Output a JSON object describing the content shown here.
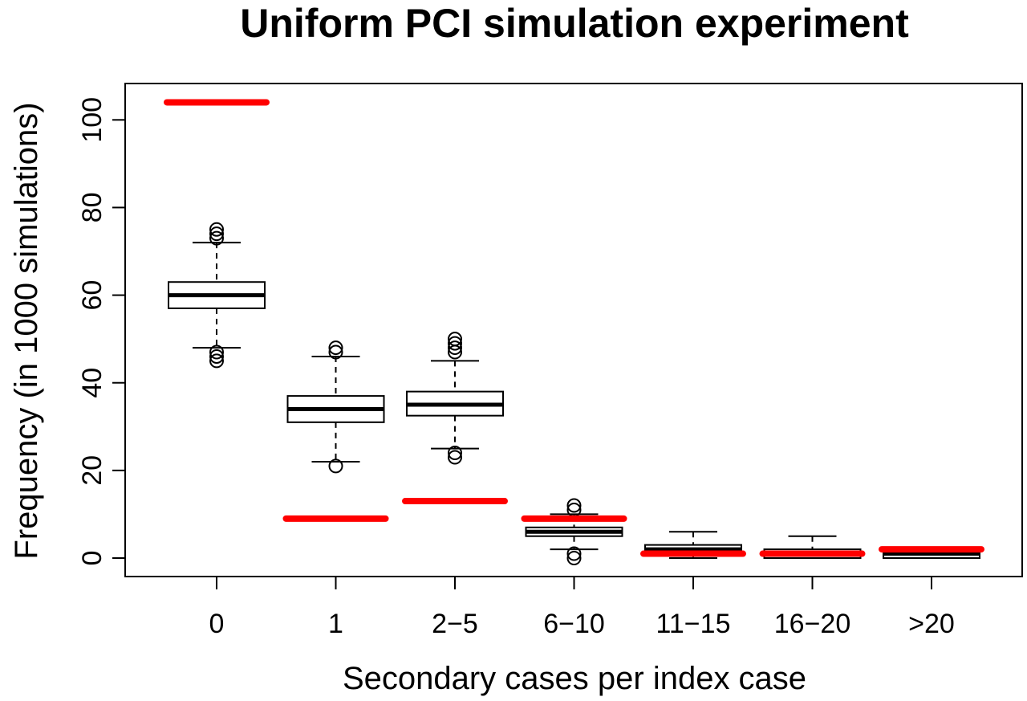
{
  "chart_data": {
    "type": "boxplot",
    "title": "Uniform PCI simulation experiment",
    "xlabel": "Secondary cases per index case",
    "ylabel": "Frequency (in 1000 simulations)",
    "ylim": [
      -4,
      107
    ],
    "yticks": [
      0,
      20,
      40,
      60,
      80,
      100
    ],
    "grid": false,
    "categories": [
      "0",
      "1",
      "2−5",
      "6−10",
      "11−15",
      "16−20",
      ">20"
    ],
    "boxes": [
      {
        "category": "0",
        "whisker_low": 48,
        "q1": 57,
        "median": 60,
        "q3": 63,
        "whisker_high": 72,
        "outliers": [
          45,
          46,
          47,
          73,
          74,
          75
        ]
      },
      {
        "category": "1",
        "whisker_low": 22,
        "q1": 31,
        "median": 34,
        "q3": 37,
        "whisker_high": 46,
        "outliers": [
          21,
          47,
          48
        ]
      },
      {
        "category": "2−5",
        "whisker_low": 25,
        "q1": 32.5,
        "median": 35,
        "q3": 38,
        "whisker_high": 45,
        "outliers": [
          23,
          24,
          47,
          48,
          49,
          50
        ]
      },
      {
        "category": "6−10",
        "whisker_low": 2,
        "q1": 5,
        "median": 6,
        "q3": 7,
        "whisker_high": 10,
        "outliers": [
          0,
          1,
          11,
          12
        ]
      },
      {
        "category": "11−15",
        "whisker_low": 0,
        "q1": 1,
        "median": 2,
        "q3": 3,
        "whisker_high": 6,
        "outliers": []
      },
      {
        "category": "16−20",
        "whisker_low": 0,
        "q1": 0,
        "median": 1,
        "q3": 2,
        "whisker_high": 5,
        "outliers": []
      },
      {
        "category": ">20",
        "whisker_low": 0,
        "q1": 0,
        "median": 1,
        "q3": 2,
        "whisker_high": 2,
        "outliers": []
      }
    ],
    "observed": {
      "color": "#ff0000",
      "values": [
        104,
        9,
        13,
        9,
        1,
        1,
        2
      ]
    }
  }
}
